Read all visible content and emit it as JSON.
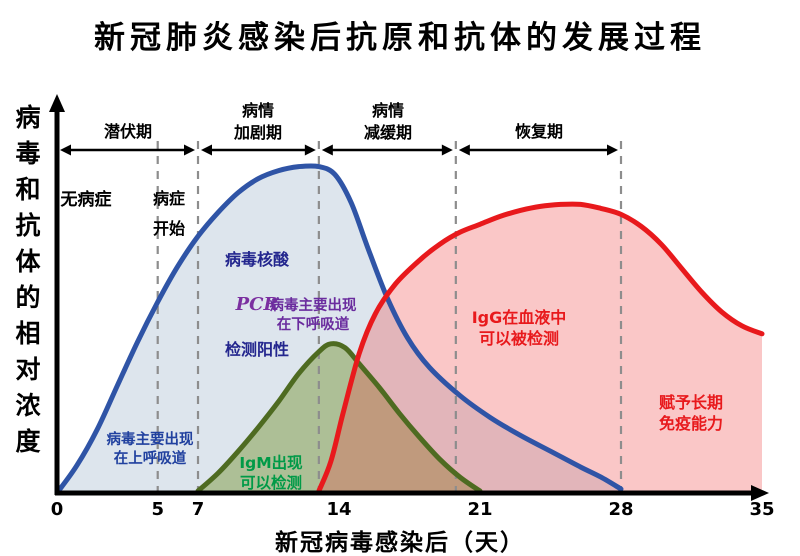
{
  "title": "新冠肺炎感染后抗原和抗体的发展过程",
  "y_axis_label": "病毒和抗体的相对浓度",
  "x_axis_title": "新冠病毒感染后（天）",
  "phases": [
    {
      "label": "潜伏期"
    },
    {
      "label": "病情\n加剧期"
    },
    {
      "label": "病情\n减缓期"
    },
    {
      "label": "恢复期"
    }
  ],
  "annotations": {
    "no_symptoms": "无病症",
    "symptoms_begin": "病症\n开始",
    "pcr_line1": "病毒核酸",
    "pcr_line2": "PCR",
    "pcr_line3": "检测阳性",
    "virus_lower": "病毒主要出现\n在下呼吸道",
    "virus_upper": "病毒主要出现\n在上呼吸道",
    "igm": "IgM出现\n可以检测",
    "igg": "IgG在血液中\n可以被检测",
    "immunity": "赋予长期\n免疫能力"
  },
  "chart_data": {
    "type": "area",
    "title": "新冠肺炎感染后抗原和抗体的发展过程",
    "xlabel": "新冠病毒感染后（天）",
    "ylabel": "病毒和抗体的相对浓度",
    "x_range": [
      0,
      35
    ],
    "y_range": [
      0,
      1
    ],
    "x_ticks": [
      0,
      5,
      7,
      14,
      21,
      28,
      35
    ],
    "dashed_lines_x": [
      5,
      7,
      13,
      19.8,
      28
    ],
    "grid": false,
    "legend": "none",
    "phase_spans": [
      {
        "label": "潜伏期",
        "from": 0,
        "to": 7
      },
      {
        "label": "病情加剧期",
        "from": 7,
        "to": 13
      },
      {
        "label": "病情减缓期",
        "from": 13,
        "to": 19.8
      },
      {
        "label": "恢复期",
        "from": 19.8,
        "to": 28
      }
    ],
    "series": [
      {
        "id": "virus",
        "name": "病毒浓度（核酸PCR检测阳性）",
        "color": "#2f54a6",
        "fill": "#9fb4cc",
        "fill_opacity": 0.35,
        "points": [
          [
            0,
            0
          ],
          [
            1,
            0.07
          ],
          [
            2,
            0.16
          ],
          [
            3,
            0.27
          ],
          [
            4,
            0.38
          ],
          [
            5,
            0.48
          ],
          [
            6,
            0.57
          ],
          [
            7,
            0.645
          ],
          [
            8,
            0.705
          ],
          [
            9,
            0.755
          ],
          [
            10,
            0.79
          ],
          [
            11,
            0.81
          ],
          [
            12,
            0.82
          ],
          [
            13,
            0.82
          ],
          [
            13.8,
            0.8
          ],
          [
            14.6,
            0.73
          ],
          [
            15.4,
            0.62
          ],
          [
            16.4,
            0.49
          ],
          [
            17.4,
            0.39
          ],
          [
            18.5,
            0.315
          ],
          [
            20,
            0.245
          ],
          [
            21.5,
            0.19
          ],
          [
            23,
            0.145
          ],
          [
            24.5,
            0.105
          ],
          [
            26,
            0.065
          ],
          [
            27,
            0.04
          ],
          [
            28,
            0.01
          ]
        ]
      },
      {
        "id": "igm",
        "name": "IgM",
        "color": "#4e6b21",
        "fill": "#7d9a3f",
        "fill_opacity": 0.5,
        "points": [
          [
            7,
            0.005
          ],
          [
            8,
            0.05
          ],
          [
            9,
            0.105
          ],
          [
            10,
            0.165
          ],
          [
            11,
            0.23
          ],
          [
            12,
            0.3
          ],
          [
            13,
            0.355
          ],
          [
            13.6,
            0.375
          ],
          [
            14.3,
            0.365
          ],
          [
            15,
            0.325
          ],
          [
            16,
            0.265
          ],
          [
            17,
            0.2
          ],
          [
            18,
            0.14
          ],
          [
            19,
            0.085
          ],
          [
            20,
            0.04
          ],
          [
            21,
            0.005
          ]
        ]
      },
      {
        "id": "igg",
        "name": "IgG",
        "color": "#e8191c",
        "fill": "#ef4444",
        "fill_opacity": 0.3,
        "points": [
          [
            13,
            0.005
          ],
          [
            13.6,
            0.08
          ],
          [
            14.2,
            0.2
          ],
          [
            15,
            0.35
          ],
          [
            15.8,
            0.45
          ],
          [
            16.8,
            0.525
          ],
          [
            18,
            0.585
          ],
          [
            19,
            0.625
          ],
          [
            20,
            0.655
          ],
          [
            21,
            0.675
          ],
          [
            22,
            0.695
          ],
          [
            23,
            0.71
          ],
          [
            24,
            0.72
          ],
          [
            25,
            0.725
          ],
          [
            26,
            0.725
          ],
          [
            27,
            0.715
          ],
          [
            28,
            0.7
          ],
          [
            29,
            0.67
          ],
          [
            30,
            0.625
          ],
          [
            31,
            0.565
          ],
          [
            32,
            0.505
          ],
          [
            33,
            0.455
          ],
          [
            34,
            0.42
          ],
          [
            35,
            0.4
          ]
        ]
      }
    ]
  }
}
